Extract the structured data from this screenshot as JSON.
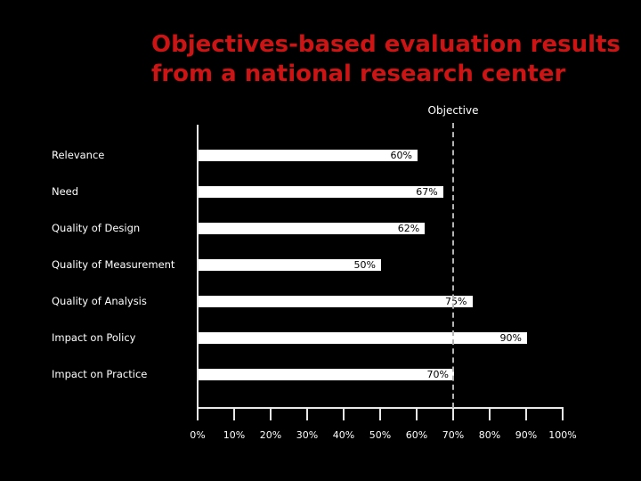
{
  "slide": {
    "title": "Objectives-based evaluation results\nfrom a national research center"
  },
  "chart_data": {
    "type": "bar",
    "orientation": "horizontal",
    "title": "",
    "categories": [
      "Relevance",
      "Need",
      "Quality of Design",
      "Quality of Measurement",
      "Quality of Analysis",
      "Impact on Policy",
      "Impact on Practice"
    ],
    "values": [
      60,
      67,
      62,
      50,
      75,
      90,
      70
    ],
    "value_labels": [
      "60%",
      "67%",
      "62%",
      "50%",
      "75%",
      "90%",
      "70%"
    ],
    "xlim": [
      0,
      100
    ],
    "xticks": [
      0,
      10,
      20,
      30,
      40,
      50,
      60,
      70,
      80,
      90,
      100
    ],
    "xtick_labels": [
      "0%",
      "10%",
      "20%",
      "30%",
      "40%",
      "50%",
      "60%",
      "70%",
      "80%",
      "90%",
      "100%"
    ],
    "reference_line": {
      "label": "Objective",
      "value": 70,
      "style": "dashed"
    },
    "grid": false,
    "legend": false
  },
  "colors": {
    "background": "#000000",
    "title": "#cc1414",
    "axis": "#e8e8e8",
    "chart_text": "#ffffff",
    "bar_fill": "#ffffff",
    "value_label": "#000000",
    "reference_line": "#b3b3b3"
  }
}
